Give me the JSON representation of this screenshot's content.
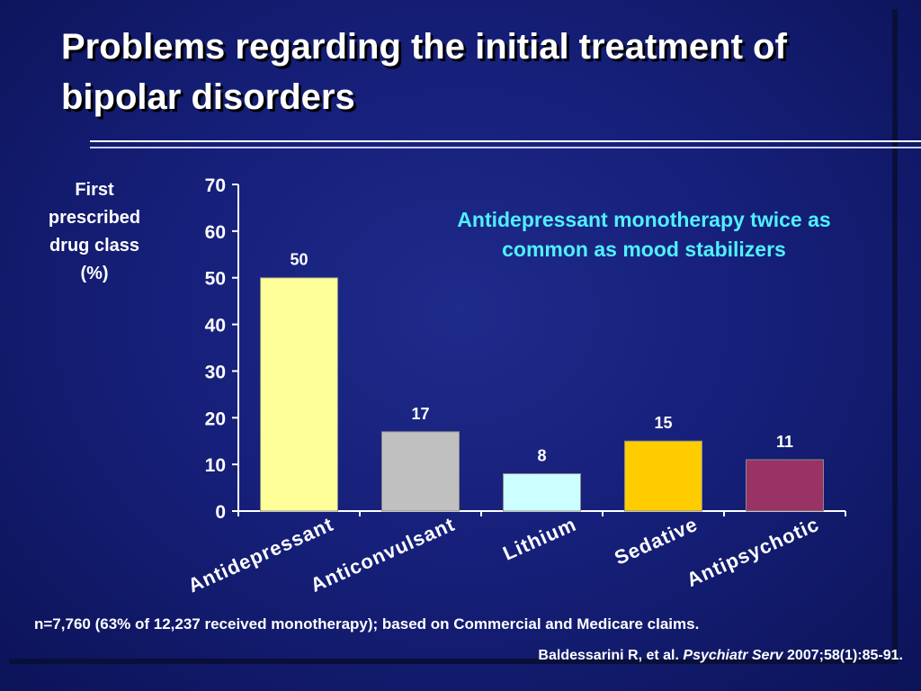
{
  "slide": {
    "title": "Problems regarding the initial treatment of bipolar disorders",
    "callout": "Antidepressant monotherapy twice as\ncommon as mood stabilizers",
    "footnote": "n=7,760 (63% of 12,237 received monotherapy); based on Commercial and Medicare claims.",
    "citation_authors": "Baldessarini R, et al.",
    "citation_journal": "Psychiatr Serv",
    "citation_ref": "2007;58(1):85-91."
  },
  "chart_data": {
    "type": "bar",
    "title": "",
    "ylabel": "First\nprescribed\ndrug class\n(%)",
    "xlabel": "",
    "ylim": [
      0,
      70
    ],
    "yticks": [
      0,
      10,
      20,
      30,
      40,
      50,
      60,
      70
    ],
    "categories": [
      "Antidepressant",
      "Anticonvulsant",
      "Lithium",
      "Sedative",
      "Antipsychotic"
    ],
    "values": [
      50,
      17,
      8,
      15,
      11
    ],
    "colors": [
      "#ffff99",
      "#c0c0c0",
      "#ccffff",
      "#ffcc00",
      "#993366"
    ],
    "grid": false,
    "legend": "none"
  }
}
